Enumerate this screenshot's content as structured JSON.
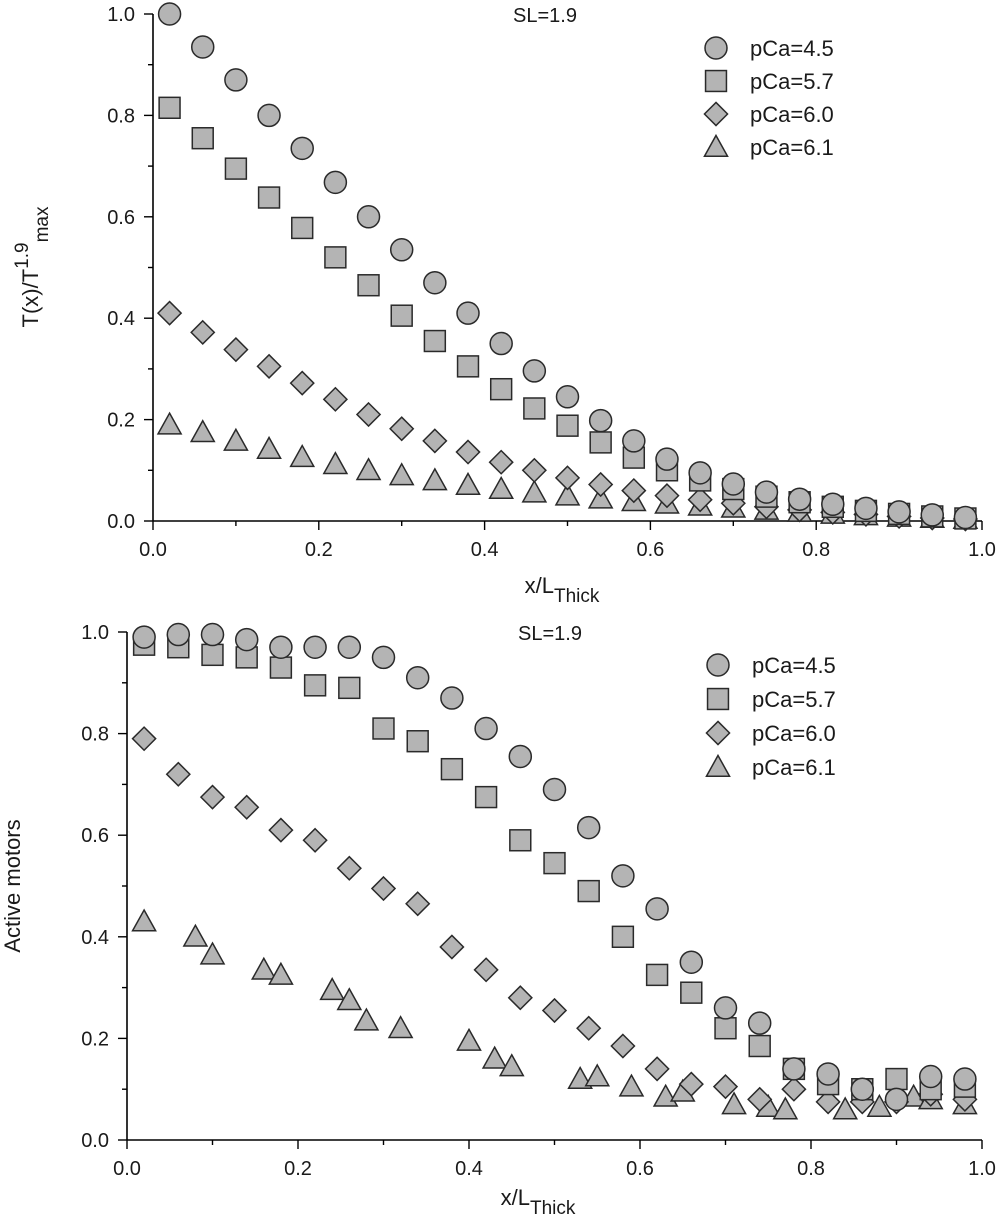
{
  "chart_data": [
    {
      "type": "scatter",
      "annotation": "SL=1.9",
      "xlabel": {
        "main": "x/L",
        "sub": "Thick"
      },
      "ylabel": {
        "main": "T(x)/T",
        "sup": "1.9",
        "sub": "max"
      },
      "xlim": [
        0.0,
        1.0
      ],
      "ylim": [
        0.0,
        1.0
      ],
      "xticks": [
        "0.0",
        "0.2",
        "0.4",
        "0.6",
        "0.8",
        "1.0"
      ],
      "yticks": [
        "0.0",
        "0.2",
        "0.4",
        "0.6",
        "0.8",
        "1.0"
      ],
      "grid": false,
      "legend_position": "top-right",
      "series": [
        {
          "name": "pCa=4.5",
          "marker": "circle",
          "x": [
            0.02,
            0.06,
            0.1,
            0.14,
            0.18,
            0.22,
            0.26,
            0.3,
            0.34,
            0.38,
            0.42,
            0.46,
            0.5,
            0.54,
            0.58,
            0.62,
            0.66,
            0.7,
            0.74,
            0.78,
            0.82,
            0.86,
            0.9,
            0.94,
            0.98
          ],
          "y": [
            1.0,
            0.935,
            0.87,
            0.8,
            0.735,
            0.668,
            0.6,
            0.535,
            0.47,
            0.41,
            0.35,
            0.296,
            0.245,
            0.198,
            0.158,
            0.122,
            0.095,
            0.073,
            0.057,
            0.043,
            0.033,
            0.025,
            0.018,
            0.012,
            0.007
          ]
        },
        {
          "name": "pCa=5.7",
          "marker": "square",
          "x": [
            0.02,
            0.06,
            0.1,
            0.14,
            0.18,
            0.22,
            0.26,
            0.3,
            0.34,
            0.38,
            0.42,
            0.46,
            0.5,
            0.54,
            0.58,
            0.62,
            0.66,
            0.7,
            0.74,
            0.78,
            0.82,
            0.86,
            0.9,
            0.94,
            0.98
          ],
          "y": [
            0.815,
            0.755,
            0.695,
            0.638,
            0.578,
            0.52,
            0.465,
            0.405,
            0.355,
            0.305,
            0.26,
            0.222,
            0.188,
            0.155,
            0.125,
            0.1,
            0.08,
            0.063,
            0.048,
            0.037,
            0.028,
            0.02,
            0.014,
            0.009,
            0.005
          ]
        },
        {
          "name": "pCa=6.0",
          "marker": "diamond",
          "x": [
            0.02,
            0.06,
            0.1,
            0.14,
            0.18,
            0.22,
            0.26,
            0.3,
            0.34,
            0.38,
            0.42,
            0.46,
            0.5,
            0.54,
            0.58,
            0.62,
            0.66,
            0.7,
            0.74,
            0.78,
            0.82,
            0.86,
            0.9,
            0.94,
            0.98
          ],
          "y": [
            0.41,
            0.372,
            0.338,
            0.305,
            0.272,
            0.24,
            0.21,
            0.182,
            0.158,
            0.136,
            0.116,
            0.1,
            0.085,
            0.072,
            0.06,
            0.05,
            0.042,
            0.035,
            0.028,
            0.022,
            0.017,
            0.013,
            0.009,
            0.006,
            0.004
          ]
        },
        {
          "name": "pCa=6.1",
          "marker": "triangle",
          "x": [
            0.02,
            0.06,
            0.1,
            0.14,
            0.18,
            0.22,
            0.26,
            0.3,
            0.34,
            0.38,
            0.42,
            0.46,
            0.5,
            0.54,
            0.58,
            0.62,
            0.66,
            0.7,
            0.74,
            0.78,
            0.82,
            0.86,
            0.9,
            0.94,
            0.98
          ],
          "y": [
            0.19,
            0.175,
            0.158,
            0.142,
            0.126,
            0.112,
            0.1,
            0.09,
            0.08,
            0.071,
            0.063,
            0.056,
            0.05,
            0.044,
            0.039,
            0.034,
            0.03,
            0.026,
            0.022,
            0.018,
            0.014,
            0.011,
            0.008,
            0.006,
            0.004
          ]
        }
      ]
    },
    {
      "type": "scatter",
      "annotation": "SL=1.9",
      "xlabel": {
        "main": "x/L",
        "sub": "Thick"
      },
      "ylabel": {
        "main": "Active motors"
      },
      "xlim": [
        0.0,
        1.0
      ],
      "ylim": [
        0.0,
        1.0
      ],
      "xticks": [
        "0.0",
        "0.2",
        "0.4",
        "0.6",
        "0.8",
        "1.0"
      ],
      "yticks": [
        "0.0",
        "0.2",
        "0.4",
        "0.6",
        "0.8",
        "1.0"
      ],
      "grid": false,
      "legend_position": "top-right",
      "series": [
        {
          "name": "pCa=4.5",
          "marker": "circle",
          "x": [
            0.02,
            0.06,
            0.1,
            0.14,
            0.18,
            0.22,
            0.26,
            0.3,
            0.34,
            0.38,
            0.42,
            0.46,
            0.5,
            0.54,
            0.58,
            0.62,
            0.66,
            0.7,
            0.74,
            0.78,
            0.82,
            0.86,
            0.9,
            0.94,
            0.98
          ],
          "y": [
            0.99,
            0.995,
            0.995,
            0.985,
            0.97,
            0.97,
            0.97,
            0.95,
            0.91,
            0.87,
            0.81,
            0.755,
            0.69,
            0.615,
            0.52,
            0.455,
            0.35,
            0.26,
            0.23,
            0.14,
            0.13,
            0.1,
            0.08,
            0.125,
            0.12
          ]
        },
        {
          "name": "pCa=5.7",
          "marker": "square",
          "x": [
            0.02,
            0.06,
            0.1,
            0.14,
            0.18,
            0.22,
            0.26,
            0.3,
            0.34,
            0.38,
            0.42,
            0.46,
            0.5,
            0.54,
            0.58,
            0.62,
            0.66,
            0.7,
            0.74,
            0.78,
            0.82,
            0.86,
            0.9,
            0.94,
            0.98
          ],
          "y": [
            0.975,
            0.97,
            0.955,
            0.95,
            0.93,
            0.895,
            0.89,
            0.81,
            0.785,
            0.73,
            0.675,
            0.59,
            0.545,
            0.49,
            0.4,
            0.325,
            0.29,
            0.22,
            0.185,
            0.14,
            0.11,
            0.1,
            0.12,
            0.1,
            0.105
          ]
        },
        {
          "name": "pCa=6.0",
          "marker": "diamond",
          "x": [
            0.02,
            0.06,
            0.1,
            0.14,
            0.18,
            0.22,
            0.26,
            0.3,
            0.34,
            0.38,
            0.42,
            0.46,
            0.5,
            0.54,
            0.58,
            0.62,
            0.66,
            0.7,
            0.74,
            0.78,
            0.82,
            0.86,
            0.9,
            0.94,
            0.98
          ],
          "y": [
            0.79,
            0.72,
            0.675,
            0.655,
            0.61,
            0.59,
            0.535,
            0.495,
            0.465,
            0.38,
            0.335,
            0.28,
            0.255,
            0.22,
            0.185,
            0.14,
            0.11,
            0.105,
            0.08,
            0.1,
            0.075,
            0.075,
            0.075,
            0.09,
            0.08
          ]
        },
        {
          "name": "pCa=6.1",
          "marker": "triangle",
          "x": [
            0.02,
            0.08,
            0.1,
            0.16,
            0.18,
            0.24,
            0.26,
            0.28,
            0.32,
            0.4,
            0.43,
            0.45,
            0.53,
            0.55,
            0.59,
            0.63,
            0.65,
            0.71,
            0.75,
            0.77,
            0.84,
            0.88,
            0.92,
            0.94,
            0.98
          ],
          "y": [
            0.43,
            0.4,
            0.365,
            0.335,
            0.325,
            0.295,
            0.275,
            0.235,
            0.22,
            0.195,
            0.16,
            0.145,
            0.12,
            0.125,
            0.105,
            0.085,
            0.095,
            0.07,
            0.065,
            0.06,
            0.06,
            0.065,
            0.085,
            0.08,
            0.07
          ]
        }
      ]
    }
  ]
}
